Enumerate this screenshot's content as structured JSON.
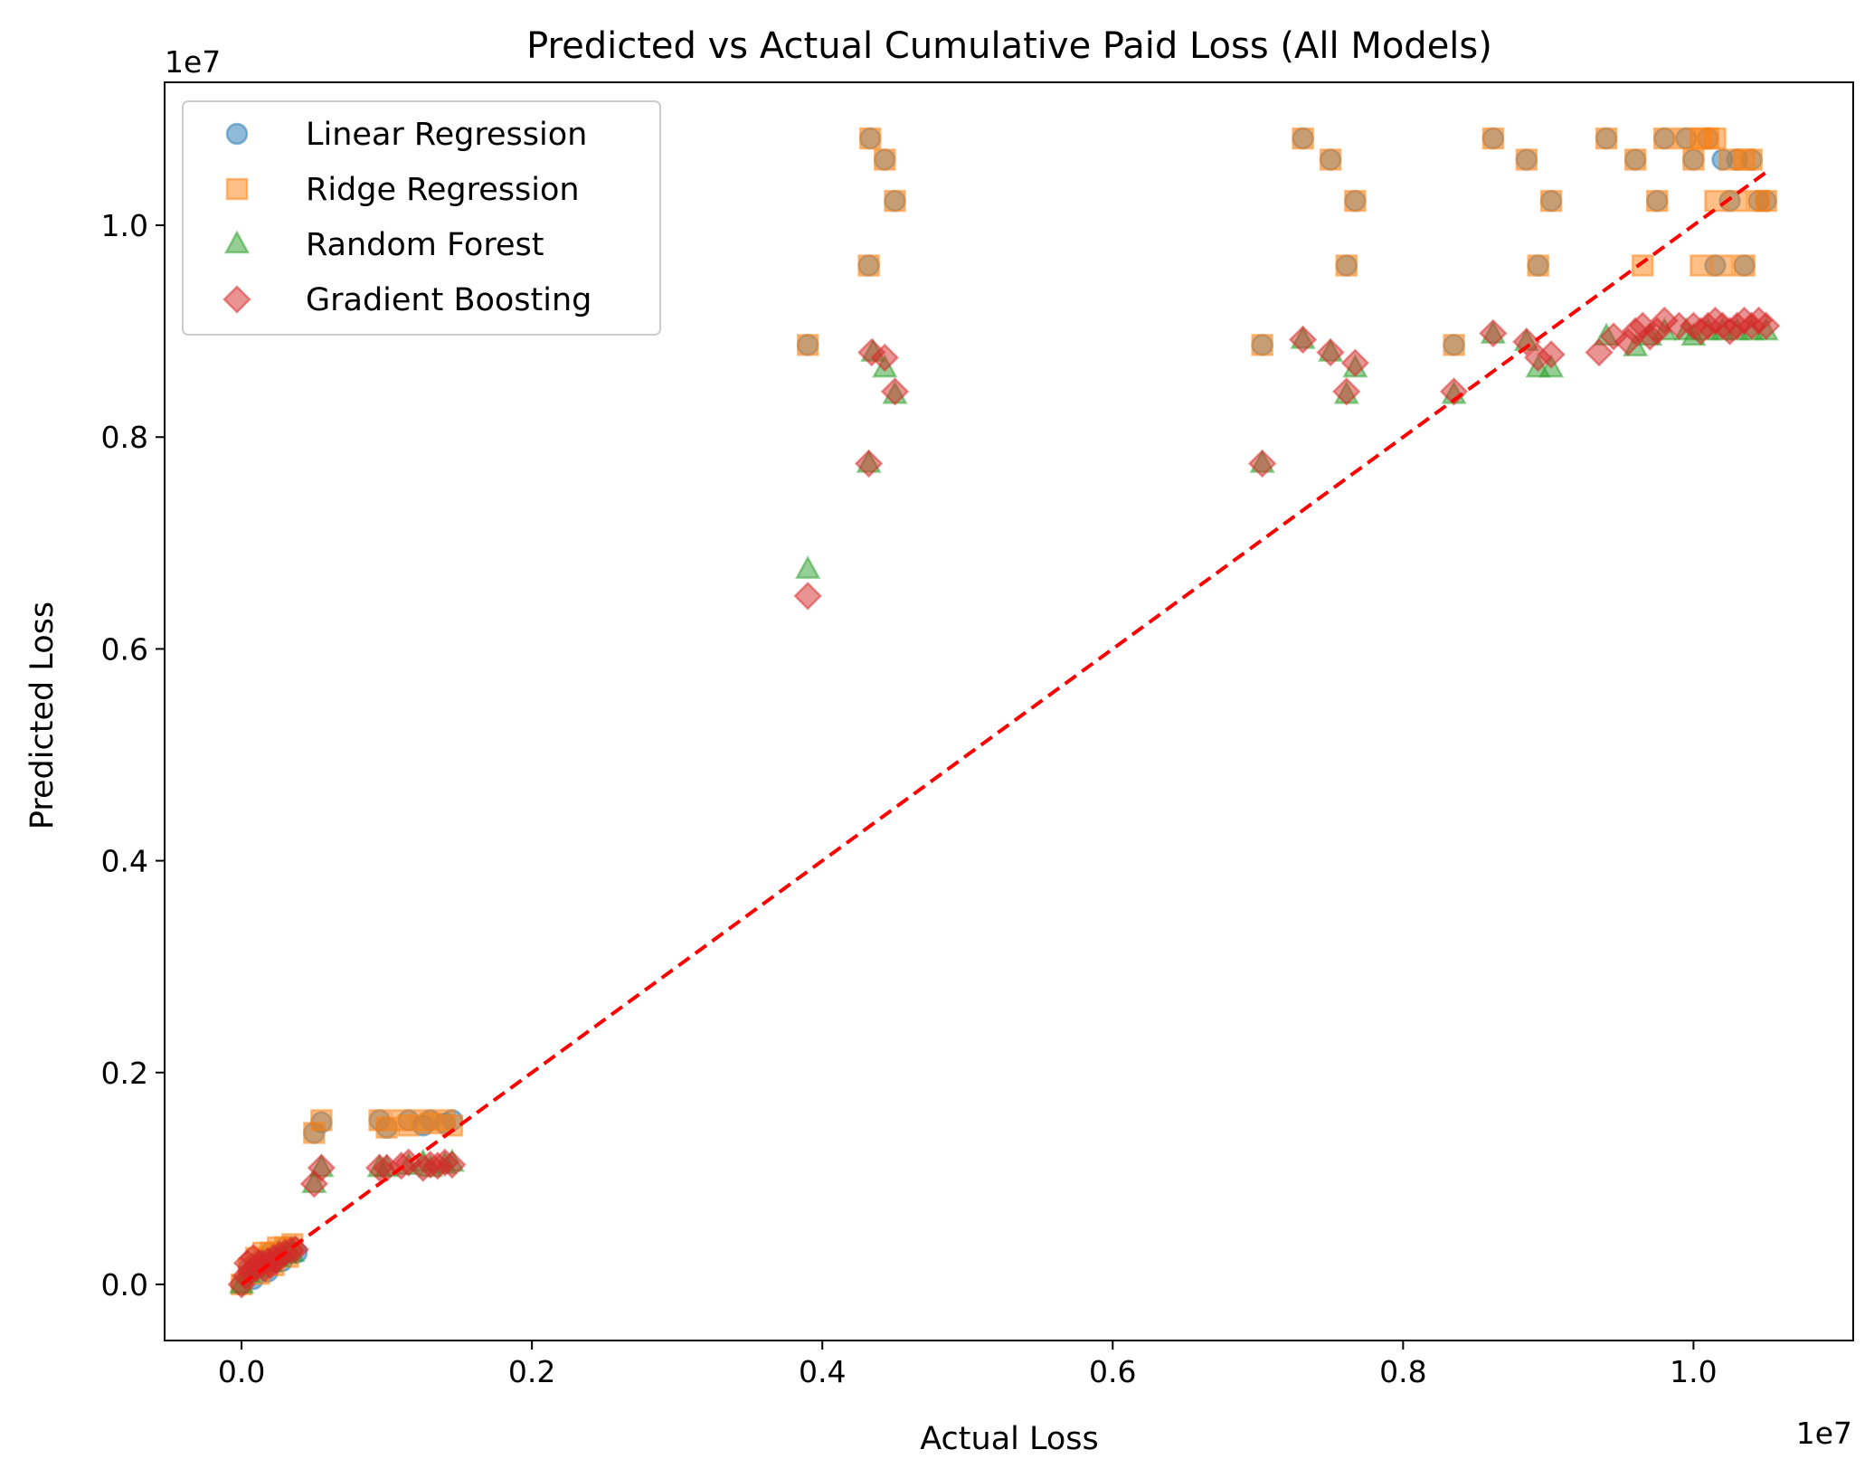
{
  "chart_data": {
    "type": "scatter",
    "title": "Predicted vs Actual Cumulative Paid Loss (All Models)",
    "xlabel": "Actual Loss",
    "ylabel": "Predicted Loss",
    "x_offset_label": "1e7",
    "y_offset_label": "1e7",
    "x_scale": 10000000,
    "y_scale": 10000000,
    "xlim": [
      -0.053,
      1.11
    ],
    "ylim": [
      -0.053,
      1.135
    ],
    "xticks": [
      0.0,
      0.2,
      0.4,
      0.6,
      0.8,
      1.0
    ],
    "yticks": [
      0.0,
      0.2,
      0.4,
      0.6,
      0.8,
      1.0
    ],
    "xtick_labels": [
      "0.0",
      "0.2",
      "0.4",
      "0.6",
      "0.8",
      "1.0"
    ],
    "ytick_labels": [
      "0.0",
      "0.2",
      "0.4",
      "0.6",
      "0.8",
      "1.0"
    ],
    "grid": false,
    "legend_position": "top-left",
    "reference_line": {
      "x": [
        0.0,
        1.05
      ],
      "y": [
        0.0,
        1.05
      ],
      "color": "#ff0000",
      "style": "dashed"
    },
    "series": [
      {
        "name": "Linear Regression",
        "marker": "circle",
        "color": "#1f77b4",
        "points": [
          [
            0.0,
            0.0
          ],
          [
            0.005,
            0.015
          ],
          [
            0.01,
            0.02
          ],
          [
            0.015,
            0.025
          ],
          [
            0.02,
            0.03
          ],
          [
            0.025,
            0.03
          ],
          [
            0.03,
            0.035
          ],
          [
            0.035,
            0.035
          ],
          [
            0.008,
            0.005
          ],
          [
            0.018,
            0.012
          ],
          [
            0.028,
            0.022
          ],
          [
            0.038,
            0.03
          ],
          [
            0.05,
            0.143
          ],
          [
            0.055,
            0.153
          ],
          [
            0.095,
            0.155
          ],
          [
            0.1,
            0.148
          ],
          [
            0.115,
            0.155
          ],
          [
            0.125,
            0.15
          ],
          [
            0.13,
            0.155
          ],
          [
            0.14,
            0.152
          ],
          [
            0.145,
            0.155
          ],
          [
            0.39,
            0.887
          ],
          [
            0.432,
            0.962
          ],
          [
            0.433,
            1.082
          ],
          [
            0.443,
            1.062
          ],
          [
            0.45,
            1.023
          ],
          [
            0.703,
            0.887
          ],
          [
            0.731,
            1.082
          ],
          [
            0.75,
            1.062
          ],
          [
            0.761,
            0.962
          ],
          [
            0.767,
            1.023
          ],
          [
            0.835,
            0.887
          ],
          [
            0.862,
            1.082
          ],
          [
            0.885,
            1.062
          ],
          [
            0.893,
            0.962
          ],
          [
            0.902,
            1.023
          ],
          [
            0.94,
            1.082
          ],
          [
            0.96,
            1.062
          ],
          [
            0.975,
            1.023
          ],
          [
            0.98,
            1.082
          ],
          [
            0.995,
            1.082
          ],
          [
            1.0,
            1.062
          ],
          [
            1.01,
            1.082
          ],
          [
            1.015,
            0.962
          ],
          [
            1.02,
            1.062
          ],
          [
            1.025,
            1.023
          ],
          [
            1.03,
            1.062
          ],
          [
            1.035,
            0.962
          ],
          [
            1.04,
            1.062
          ],
          [
            1.045,
            1.023
          ],
          [
            1.05,
            1.023
          ]
        ]
      },
      {
        "name": "Ridge Regression",
        "marker": "square",
        "color": "#ff7f0e",
        "points": [
          [
            0.0,
            0.0
          ],
          [
            0.005,
            0.015
          ],
          [
            0.01,
            0.025
          ],
          [
            0.015,
            0.03
          ],
          [
            0.02,
            0.03
          ],
          [
            0.025,
            0.035
          ],
          [
            0.03,
            0.035
          ],
          [
            0.035,
            0.038
          ],
          [
            0.012,
            0.01
          ],
          [
            0.022,
            0.018
          ],
          [
            0.032,
            0.026
          ],
          [
            0.05,
            0.143
          ],
          [
            0.055,
            0.155
          ],
          [
            0.095,
            0.155
          ],
          [
            0.1,
            0.148
          ],
          [
            0.11,
            0.155
          ],
          [
            0.115,
            0.15
          ],
          [
            0.125,
            0.155
          ],
          [
            0.13,
            0.152
          ],
          [
            0.14,
            0.155
          ],
          [
            0.145,
            0.15
          ],
          [
            0.39,
            0.887
          ],
          [
            0.432,
            0.962
          ],
          [
            0.433,
            1.082
          ],
          [
            0.443,
            1.062
          ],
          [
            0.45,
            1.023
          ],
          [
            0.703,
            0.887
          ],
          [
            0.731,
            1.082
          ],
          [
            0.75,
            1.062
          ],
          [
            0.761,
            0.962
          ],
          [
            0.767,
            1.023
          ],
          [
            0.835,
            0.887
          ],
          [
            0.862,
            1.082
          ],
          [
            0.885,
            1.062
          ],
          [
            0.893,
            0.962
          ],
          [
            0.902,
            1.023
          ],
          [
            0.94,
            1.082
          ],
          [
            0.96,
            1.062
          ],
          [
            0.965,
            0.962
          ],
          [
            0.975,
            1.023
          ],
          [
            0.98,
            1.082
          ],
          [
            0.995,
            1.082
          ],
          [
            1.0,
            1.062
          ],
          [
            1.005,
            1.082
          ],
          [
            1.01,
            1.082
          ],
          [
            1.015,
            1.082
          ],
          [
            1.02,
            0.962
          ],
          [
            1.025,
            1.062
          ],
          [
            1.03,
            1.023
          ],
          [
            1.035,
            0.962
          ],
          [
            1.04,
            1.062
          ],
          [
            1.045,
            1.023
          ],
          [
            1.05,
            1.023
          ],
          [
            1.005,
            0.962
          ],
          [
            1.015,
            1.023
          ],
          [
            1.035,
            1.062
          ]
        ]
      },
      {
        "name": "Random Forest",
        "marker": "triangle",
        "color": "#2ca02c",
        "points": [
          [
            0.0,
            0.0
          ],
          [
            0.005,
            0.01
          ],
          [
            0.01,
            0.015
          ],
          [
            0.015,
            0.02
          ],
          [
            0.02,
            0.02
          ],
          [
            0.025,
            0.025
          ],
          [
            0.03,
            0.028
          ],
          [
            0.035,
            0.03
          ],
          [
            0.05,
            0.095
          ],
          [
            0.055,
            0.11
          ],
          [
            0.095,
            0.11
          ],
          [
            0.1,
            0.11
          ],
          [
            0.115,
            0.112
          ],
          [
            0.125,
            0.115
          ],
          [
            0.13,
            0.11
          ],
          [
            0.14,
            0.113
          ],
          [
            0.145,
            0.115
          ],
          [
            0.39,
            0.675
          ],
          [
            0.432,
            0.775
          ],
          [
            0.435,
            0.88
          ],
          [
            0.443,
            0.865
          ],
          [
            0.45,
            0.84
          ],
          [
            0.703,
            0.775
          ],
          [
            0.731,
            0.892
          ],
          [
            0.75,
            0.88
          ],
          [
            0.761,
            0.84
          ],
          [
            0.767,
            0.865
          ],
          [
            0.835,
            0.84
          ],
          [
            0.862,
            0.897
          ],
          [
            0.885,
            0.89
          ],
          [
            0.893,
            0.865
          ],
          [
            0.902,
            0.865
          ],
          [
            0.94,
            0.895
          ],
          [
            0.96,
            0.885
          ],
          [
            0.97,
            0.895
          ],
          [
            0.98,
            0.9
          ],
          [
            0.995,
            0.9
          ],
          [
            1.0,
            0.895
          ],
          [
            1.01,
            0.9
          ],
          [
            1.02,
            0.9
          ],
          [
            1.03,
            0.9
          ],
          [
            1.04,
            0.9
          ],
          [
            1.05,
            0.9
          ]
        ]
      },
      {
        "name": "Gradient Boosting",
        "marker": "diamond",
        "color": "#d62728",
        "points": [
          [
            0.0,
            0.0
          ],
          [
            0.003,
            0.008
          ],
          [
            0.006,
            0.012
          ],
          [
            0.01,
            0.015
          ],
          [
            0.014,
            0.02
          ],
          [
            0.018,
            0.022
          ],
          [
            0.022,
            0.025
          ],
          [
            0.026,
            0.028
          ],
          [
            0.03,
            0.03
          ],
          [
            0.034,
            0.032
          ],
          [
            0.037,
            0.033
          ],
          [
            0.004,
            0.02
          ],
          [
            0.008,
            0.025
          ],
          [
            0.012,
            0.02
          ],
          [
            0.016,
            0.015
          ],
          [
            0.02,
            0.018
          ],
          [
            0.024,
            0.022
          ],
          [
            0.05,
            0.095
          ],
          [
            0.055,
            0.11
          ],
          [
            0.095,
            0.11
          ],
          [
            0.1,
            0.11
          ],
          [
            0.11,
            0.112
          ],
          [
            0.115,
            0.115
          ],
          [
            0.125,
            0.11
          ],
          [
            0.13,
            0.113
          ],
          [
            0.135,
            0.112
          ],
          [
            0.14,
            0.115
          ],
          [
            0.145,
            0.113
          ],
          [
            0.39,
            0.65
          ],
          [
            0.432,
            0.775
          ],
          [
            0.434,
            0.88
          ],
          [
            0.443,
            0.875
          ],
          [
            0.45,
            0.843
          ],
          [
            0.703,
            0.775
          ],
          [
            0.731,
            0.892
          ],
          [
            0.75,
            0.88
          ],
          [
            0.761,
            0.843
          ],
          [
            0.767,
            0.87
          ],
          [
            0.835,
            0.843
          ],
          [
            0.862,
            0.898
          ],
          [
            0.885,
            0.89
          ],
          [
            0.893,
            0.875
          ],
          [
            0.902,
            0.878
          ],
          [
            0.935,
            0.88
          ],
          [
            0.945,
            0.895
          ],
          [
            0.955,
            0.89
          ],
          [
            0.96,
            0.9
          ],
          [
            0.965,
            0.905
          ],
          [
            0.97,
            0.895
          ],
          [
            0.975,
            0.9
          ],
          [
            0.98,
            0.91
          ],
          [
            0.99,
            0.905
          ],
          [
            1.0,
            0.905
          ],
          [
            1.005,
            0.9
          ],
          [
            1.01,
            0.905
          ],
          [
            1.015,
            0.91
          ],
          [
            1.02,
            0.905
          ],
          [
            1.025,
            0.9
          ],
          [
            1.03,
            0.905
          ],
          [
            1.035,
            0.91
          ],
          [
            1.04,
            0.905
          ],
          [
            1.045,
            0.91
          ],
          [
            1.05,
            0.905
          ]
        ]
      }
    ]
  }
}
